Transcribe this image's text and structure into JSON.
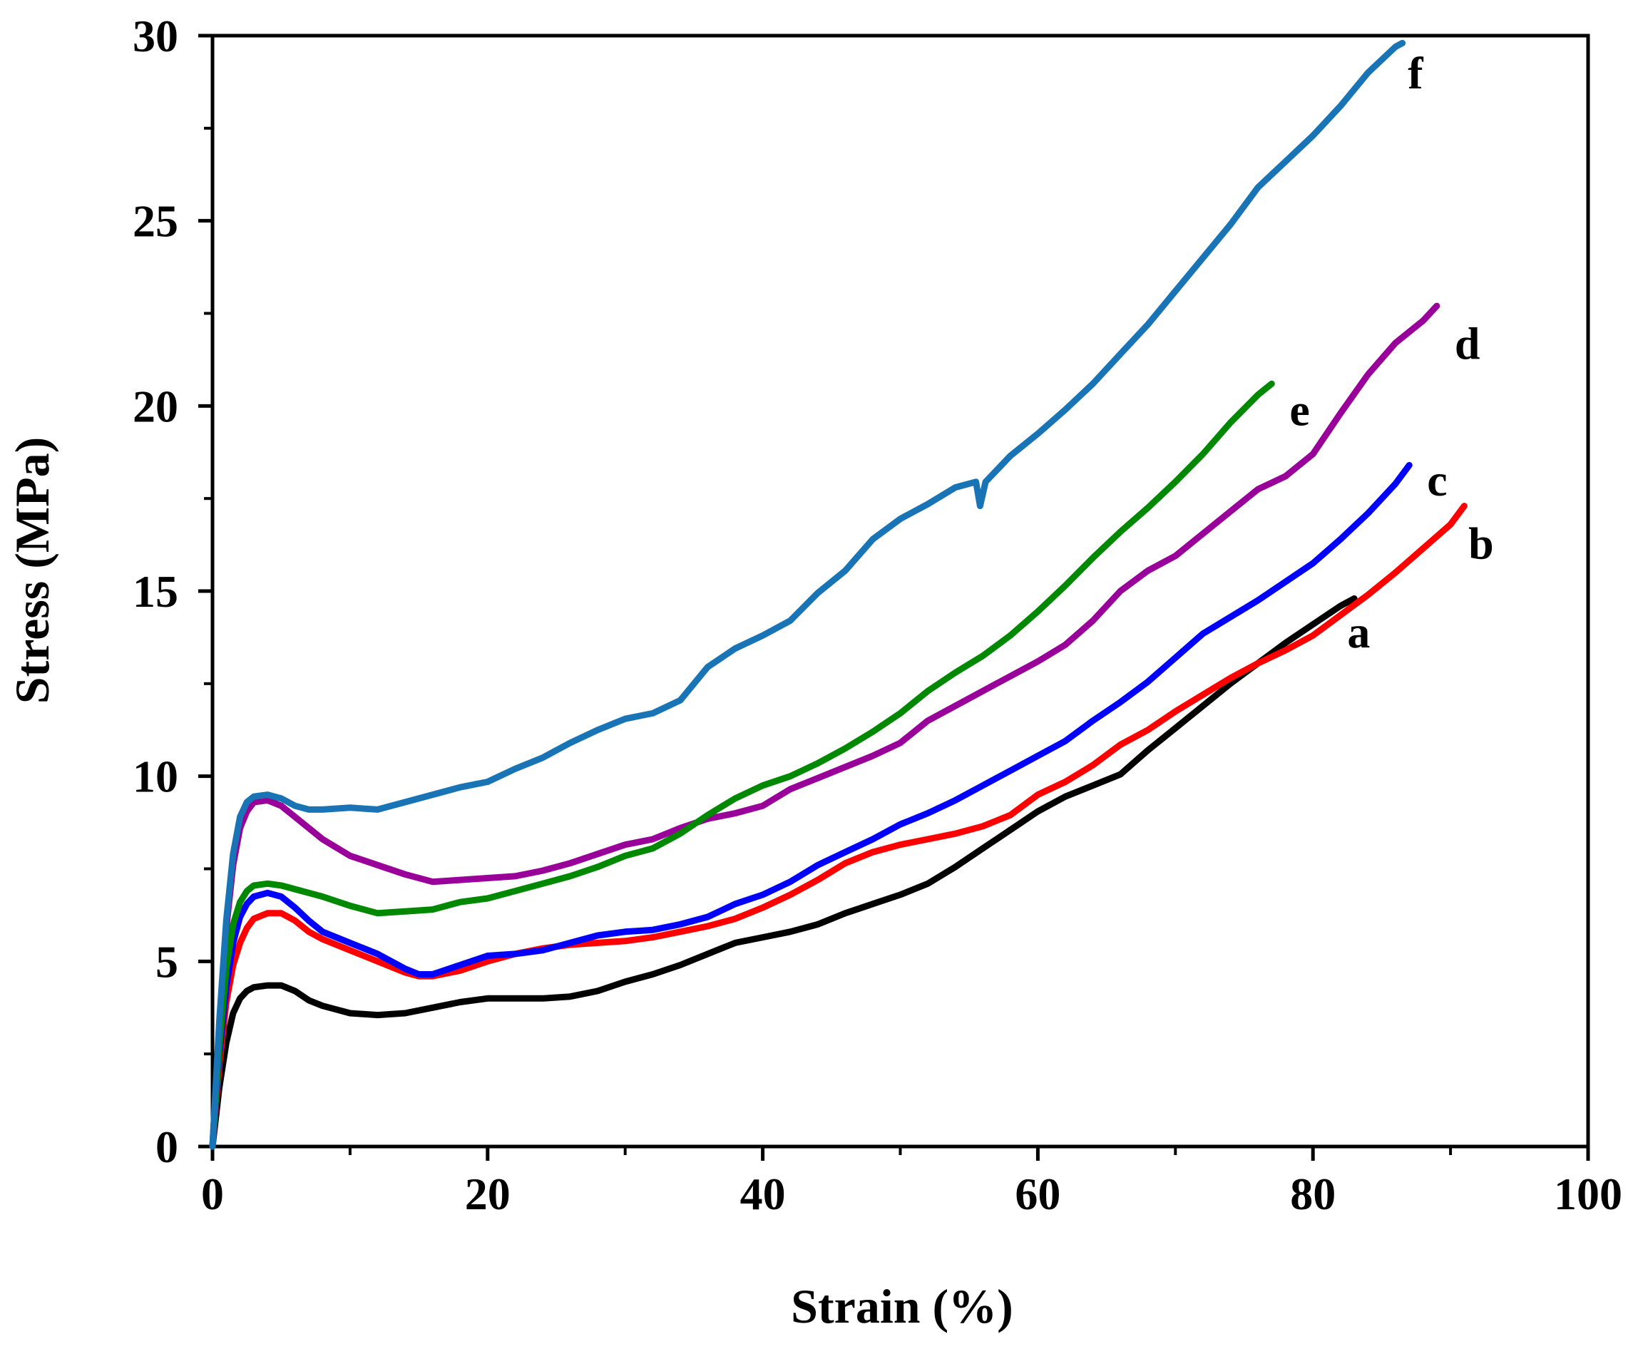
{
  "chart_data": {
    "type": "line",
    "title": "",
    "xlabel": "Strain (%)",
    "ylabel": "Stress (MPa)",
    "xlim": [
      0,
      100
    ],
    "ylim": [
      0,
      30
    ],
    "xticks": [
      0,
      20,
      40,
      60,
      80,
      100
    ],
    "yticks": [
      0,
      5,
      10,
      15,
      20,
      25,
      30
    ],
    "grid": false,
    "legend": "none (curves labeled directly)",
    "series": [
      {
        "name": "a",
        "color": "#000000",
        "x": [
          0,
          0.5,
          1,
          1.5,
          2,
          2.5,
          3,
          4,
          5,
          6,
          7,
          8,
          9,
          10,
          12,
          14,
          16,
          18,
          20,
          22,
          24,
          26,
          28,
          30,
          32,
          34,
          36,
          38,
          40,
          42,
          44,
          46,
          48,
          50,
          52,
          54,
          56,
          58,
          60,
          62,
          64,
          66,
          68,
          70,
          72,
          74,
          76,
          78,
          80,
          82,
          83
        ],
        "y": [
          0,
          1.6,
          2.8,
          3.6,
          4.0,
          4.2,
          4.3,
          4.35,
          4.35,
          4.2,
          3.95,
          3.8,
          3.7,
          3.6,
          3.55,
          3.6,
          3.75,
          3.9,
          4.0,
          4.0,
          4.0,
          4.05,
          4.2,
          4.45,
          4.65,
          4.9,
          5.2,
          5.5,
          5.65,
          5.8,
          6.0,
          6.3,
          6.55,
          6.8,
          7.1,
          7.55,
          8.05,
          8.55,
          9.05,
          9.45,
          9.75,
          10.05,
          10.7,
          11.3,
          11.9,
          12.5,
          13.05,
          13.6,
          14.1,
          14.6,
          14.8
        ]
      },
      {
        "name": "b",
        "color": "#ff0000",
        "x": [
          0,
          0.5,
          1,
          1.5,
          2,
          2.5,
          3,
          4,
          5,
          6,
          7,
          8,
          10,
          12,
          14,
          15,
          16,
          18,
          20,
          22,
          24,
          26,
          28,
          30,
          32,
          34,
          36,
          38,
          40,
          42,
          44,
          46,
          48,
          50,
          52,
          54,
          56,
          58,
          60,
          62,
          64,
          66,
          68,
          70,
          72,
          74,
          76,
          78,
          80,
          82,
          84,
          86,
          88,
          90,
          91
        ],
        "y": [
          0,
          2.2,
          3.9,
          4.9,
          5.5,
          5.9,
          6.15,
          6.3,
          6.3,
          6.1,
          5.8,
          5.6,
          5.3,
          5.0,
          4.7,
          4.6,
          4.6,
          4.75,
          5.0,
          5.2,
          5.35,
          5.45,
          5.5,
          5.55,
          5.65,
          5.8,
          5.95,
          6.15,
          6.45,
          6.8,
          7.2,
          7.65,
          7.95,
          8.15,
          8.3,
          8.45,
          8.65,
          8.95,
          9.5,
          9.85,
          10.3,
          10.85,
          11.25,
          11.75,
          12.2,
          12.65,
          13.05,
          13.4,
          13.8,
          14.35,
          14.9,
          15.5,
          16.15,
          16.8,
          17.3
        ]
      },
      {
        "name": "c",
        "color": "#0000ff",
        "x": [
          0,
          0.5,
          1,
          1.5,
          2,
          2.5,
          3,
          4,
          5,
          6,
          7,
          8,
          10,
          12,
          14,
          15,
          16,
          18,
          20,
          22,
          24,
          26,
          28,
          30,
          32,
          34,
          36,
          38,
          40,
          42,
          44,
          46,
          48,
          50,
          52,
          54,
          56,
          58,
          60,
          62,
          64,
          66,
          68,
          70,
          72,
          74,
          76,
          78,
          80,
          82,
          84,
          86,
          87
        ],
        "y": [
          0,
          2.5,
          4.3,
          5.5,
          6.2,
          6.55,
          6.75,
          6.85,
          6.75,
          6.45,
          6.1,
          5.8,
          5.5,
          5.2,
          4.8,
          4.65,
          4.65,
          4.9,
          5.15,
          5.2,
          5.3,
          5.5,
          5.7,
          5.8,
          5.85,
          6.0,
          6.2,
          6.55,
          6.8,
          7.15,
          7.6,
          7.95,
          8.3,
          8.7,
          9.0,
          9.35,
          9.75,
          10.15,
          10.55,
          10.95,
          11.5,
          12.0,
          12.55,
          13.2,
          13.85,
          14.3,
          14.75,
          15.25,
          15.75,
          16.4,
          17.1,
          17.9,
          18.4
        ]
      },
      {
        "name": "d",
        "color": "#990099",
        "x": [
          0,
          0.5,
          1,
          1.5,
          2,
          2.5,
          3,
          4,
          5,
          6,
          7,
          8,
          10,
          12,
          14,
          16,
          18,
          20,
          22,
          24,
          26,
          28,
          30,
          32,
          34,
          36,
          38,
          40,
          42,
          44,
          46,
          48,
          50,
          52,
          54,
          56,
          58,
          60,
          62,
          64,
          66,
          68,
          70,
          72,
          74,
          76,
          78,
          80,
          82,
          84,
          86,
          88,
          89
        ],
        "y": [
          0,
          3.3,
          5.9,
          7.6,
          8.6,
          9.05,
          9.3,
          9.35,
          9.2,
          8.9,
          8.6,
          8.3,
          7.85,
          7.6,
          7.35,
          7.15,
          7.2,
          7.25,
          7.3,
          7.45,
          7.65,
          7.9,
          8.15,
          8.3,
          8.6,
          8.85,
          9.0,
          9.2,
          9.65,
          9.95,
          10.25,
          10.55,
          10.9,
          11.5,
          11.9,
          12.3,
          12.7,
          13.1,
          13.55,
          14.2,
          15.0,
          15.55,
          15.95,
          16.55,
          17.15,
          17.75,
          18.1,
          18.7,
          19.8,
          20.85,
          21.7,
          22.3,
          22.7
        ]
      },
      {
        "name": "e",
        "color": "#008800",
        "x": [
          0,
          0.5,
          1,
          1.5,
          2,
          2.5,
          3,
          4,
          5,
          6,
          7,
          8,
          10,
          12,
          14,
          16,
          18,
          20,
          22,
          24,
          26,
          28,
          30,
          32,
          34,
          36,
          38,
          40,
          42,
          44,
          46,
          48,
          50,
          52,
          54,
          56,
          58,
          60,
          62,
          64,
          66,
          68,
          70,
          72,
          74,
          76,
          77
        ],
        "y": [
          0,
          2.7,
          4.8,
          6.0,
          6.6,
          6.9,
          7.05,
          7.1,
          7.05,
          6.95,
          6.85,
          6.75,
          6.5,
          6.3,
          6.35,
          6.4,
          6.6,
          6.7,
          6.9,
          7.1,
          7.3,
          7.55,
          7.85,
          8.05,
          8.45,
          8.95,
          9.4,
          9.75,
          10.0,
          10.35,
          10.75,
          11.2,
          11.7,
          12.3,
          12.8,
          13.25,
          13.8,
          14.45,
          15.15,
          15.9,
          16.6,
          17.25,
          17.95,
          18.7,
          19.55,
          20.3,
          20.6
        ]
      },
      {
        "name": "f",
        "color": "#1874b4",
        "x": [
          0,
          0.5,
          1,
          1.5,
          2,
          2.5,
          3,
          4,
          5,
          6,
          7,
          8,
          10,
          12,
          14,
          16,
          18,
          20,
          22,
          24,
          26,
          28,
          30,
          32,
          34,
          36,
          38,
          40,
          42,
          44,
          46,
          48,
          50,
          52,
          54,
          55.5,
          55.8,
          56.2,
          58,
          60,
          62,
          64,
          66,
          68,
          70,
          72,
          74,
          76,
          78,
          80,
          82,
          84,
          86,
          86.5
        ],
        "y": [
          0,
          3.4,
          6.1,
          7.9,
          8.9,
          9.3,
          9.45,
          9.5,
          9.4,
          9.2,
          9.1,
          9.1,
          9.15,
          9.1,
          9.3,
          9.5,
          9.7,
          9.85,
          10.2,
          10.5,
          10.9,
          11.25,
          11.55,
          11.7,
          12.05,
          12.95,
          13.45,
          13.8,
          14.2,
          14.95,
          15.55,
          16.4,
          16.95,
          17.35,
          17.8,
          17.95,
          17.3,
          17.95,
          18.65,
          19.25,
          19.9,
          20.6,
          21.4,
          22.2,
          23.1,
          24.0,
          24.9,
          25.9,
          26.6,
          27.3,
          28.1,
          29.0,
          29.7,
          29.8
        ]
      }
    ],
    "annotations": [
      {
        "text": "a",
        "x": 82.5,
        "y": 13.9
      },
      {
        "text": "b",
        "x": 91.3,
        "y": 16.3
      },
      {
        "text": "c",
        "x": 88.3,
        "y": 18.0
      },
      {
        "text": "d",
        "x": 90.3,
        "y": 21.7
      },
      {
        "text": "e",
        "x": 78.3,
        "y": 19.9
      },
      {
        "text": "f",
        "x": 86.9,
        "y": 29.0
      }
    ]
  }
}
